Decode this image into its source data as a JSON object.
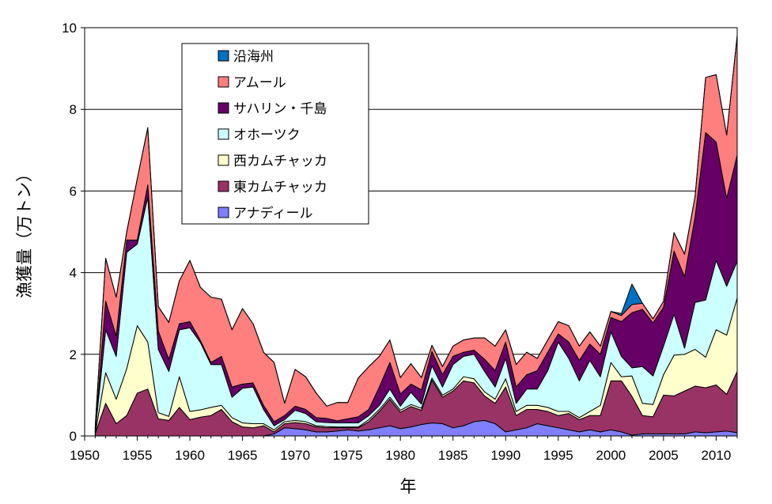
{
  "chart_data": {
    "type": "area",
    "stacked": true,
    "title": "",
    "xlabel": "年",
    "ylabel": "漁獲量（万トン）",
    "xlim": [
      1950,
      2012
    ],
    "ylim": [
      0,
      10
    ],
    "xticks": [
      1950,
      1955,
      1960,
      1965,
      1970,
      1975,
      1980,
      1985,
      1990,
      1995,
      2000,
      2005,
      2010
    ],
    "yticks": [
      0,
      2,
      4,
      6,
      8,
      10
    ],
    "grid": "horizontal",
    "legend_position": "top-left inside",
    "x": [
      1951,
      1952,
      1953,
      1954,
      1955,
      1956,
      1957,
      1958,
      1959,
      1960,
      1961,
      1962,
      1963,
      1964,
      1965,
      1966,
      1967,
      1968,
      1969,
      1970,
      1971,
      1972,
      1973,
      1974,
      1975,
      1976,
      1977,
      1978,
      1979,
      1980,
      1981,
      1982,
      1983,
      1984,
      1985,
      1986,
      1987,
      1988,
      1989,
      1990,
      1991,
      1992,
      1993,
      1994,
      1995,
      1996,
      1997,
      1998,
      1999,
      2000,
      2001,
      2002,
      2003,
      2004,
      2005,
      2006,
      2007,
      2008,
      2009,
      2010,
      2011,
      2012
    ],
    "series": [
      {
        "name": "アナディール",
        "color": "#7f7fff",
        "values": [
          0,
          0,
          0,
          0,
          0,
          0,
          0,
          0,
          0,
          0,
          0,
          0,
          0,
          0,
          0,
          0,
          0,
          0.05,
          0.2,
          0.18,
          0.15,
          0.1,
          0.1,
          0.12,
          0.15,
          0.12,
          0.15,
          0.2,
          0.25,
          0.18,
          0.22,
          0.28,
          0.32,
          0.3,
          0.2,
          0.25,
          0.35,
          0.38,
          0.3,
          0.1,
          0.15,
          0.2,
          0.3,
          0.25,
          0.2,
          0.15,
          0.1,
          0.15,
          0.1,
          0.15,
          0.1,
          0.02,
          0.05,
          0.05,
          0.05,
          0.05,
          0.05,
          0.1,
          0.08,
          0.1,
          0.12,
          0.08
        ]
      },
      {
        "name": "東カムチャッカ",
        "color": "#993366",
        "values": [
          0.05,
          0.8,
          0.3,
          0.5,
          1.05,
          1.15,
          0.42,
          0.38,
          0.7,
          0.4,
          0.46,
          0.5,
          0.65,
          0.35,
          0.22,
          0.2,
          0.25,
          0.05,
          0.1,
          0.15,
          0.15,
          0.12,
          0.1,
          0.08,
          0.05,
          0.08,
          0.2,
          0.4,
          0.65,
          0.4,
          0.5,
          0.35,
          1.05,
          0.65,
          0.9,
          1.1,
          0.95,
          0.6,
          0.5,
          1.1,
          0.35,
          0.45,
          0.35,
          0.35,
          0.3,
          0.4,
          0.3,
          0.35,
          0.4,
          1.2,
          1.25,
          0.95,
          0.45,
          0.42,
          0.95,
          0.93,
          1.05,
          1.12,
          1.1,
          1.15,
          0.9,
          1.5
        ]
      },
      {
        "name": "西カムチャッカ",
        "color": "#ffffcc",
        "values": [
          0,
          0.75,
          0.6,
          1.15,
          1.65,
          1.15,
          0.15,
          0.1,
          0.75,
          0.2,
          0.18,
          0.2,
          0.1,
          0.1,
          0.1,
          0.1,
          0.05,
          0.05,
          0.05,
          0.05,
          0.05,
          0.03,
          0.03,
          0.02,
          0.02,
          0.02,
          0.05,
          0.05,
          0.05,
          0.05,
          0.05,
          0.05,
          0.05,
          0.05,
          0.05,
          0.1,
          0.1,
          0.1,
          0.1,
          0.2,
          0.1,
          0.1,
          0.1,
          0.1,
          0.1,
          0.05,
          0.05,
          0.1,
          0.25,
          0.45,
          0.1,
          0.5,
          0.3,
          0.3,
          0.5,
          1.0,
          0.9,
          0.9,
          0.75,
          1.35,
          1.45,
          1.8
        ]
      },
      {
        "name": "オホーツク",
        "color": "#ccffff",
        "values": [
          0.05,
          1.05,
          1.05,
          2.85,
          2.0,
          3.55,
          1.55,
          1.1,
          1.15,
          2.05,
          1.65,
          1.05,
          1.0,
          0.5,
          0.85,
          0.9,
          0.35,
          0.1,
          0.05,
          0.25,
          0.2,
          0.1,
          0.1,
          0.1,
          0.1,
          0.1,
          0.1,
          0.1,
          0.2,
          0.1,
          0.3,
          0.1,
          0.3,
          0.2,
          0.6,
          0.5,
          0.6,
          0.5,
          0.3,
          0.5,
          0.2,
          0.4,
          0.4,
          0.9,
          1.7,
          1.3,
          0.9,
          1.25,
          0.7,
          0.75,
          0.5,
          0.2,
          0.9,
          0.7,
          0.7,
          1.0,
          0.15,
          1.15,
          1.4,
          1.7,
          1.2,
          0.9
        ]
      },
      {
        "name": "サハリン・千島",
        "color": "#660066",
        "values": [
          0,
          0.7,
          0.5,
          0.3,
          0.1,
          0.3,
          0.45,
          0.3,
          0.15,
          0.15,
          0.05,
          0.05,
          0.2,
          0.25,
          0.1,
          0.1,
          0.1,
          0.1,
          0.1,
          0.1,
          0.1,
          0.1,
          0.1,
          0.05,
          0.1,
          0.15,
          0.15,
          0.45,
          0.65,
          0.3,
          0.2,
          0.35,
          0.35,
          0.3,
          0.2,
          0.1,
          0.1,
          0.3,
          0.4,
          0.4,
          0.4,
          0.35,
          0.45,
          0.45,
          0.2,
          0.4,
          0.5,
          0.4,
          0.55,
          0.35,
          0.85,
          1.35,
          1.4,
          1.3,
          0.95,
          1.55,
          1.75,
          2.1,
          4.1,
          2.9,
          2.15,
          2.6
        ]
      },
      {
        "name": "アムール",
        "color": "#ff7f7f",
        "values": [
          0.1,
          1.05,
          0.95,
          0.2,
          1.5,
          1.4,
          0.6,
          0.9,
          1.05,
          1.5,
          1.3,
          1.6,
          1.4,
          1.4,
          1.85,
          1.45,
          1.3,
          1.45,
          0.3,
          0.9,
          0.8,
          0.6,
          0.3,
          0.45,
          0.4,
          0.95,
          1.05,
          0.75,
          0.55,
          0.4,
          0.5,
          0.3,
          0.15,
          0.2,
          0.25,
          0.3,
          0.3,
          0.52,
          0.6,
          0.3,
          0.55,
          0.55,
          0.3,
          0.3,
          0.3,
          0.4,
          0.35,
          0.3,
          0.2,
          0.15,
          0.15,
          0.2,
          0.15,
          0.1,
          0.15,
          0.45,
          0.55,
          0.5,
          1.35,
          1.65,
          1.55,
          2.92
        ]
      },
      {
        "name": "沿海州",
        "color": "#0070c0",
        "values": [
          0,
          0,
          0,
          0,
          0,
          0,
          0,
          0,
          0,
          0,
          0,
          0,
          0,
          0,
          0,
          0,
          0,
          0,
          0,
          0,
          0,
          0,
          0,
          0,
          0,
          0,
          0,
          0,
          0,
          0,
          0,
          0,
          0,
          0,
          0,
          0,
          0,
          0,
          0,
          0,
          0,
          0,
          0,
          0,
          0,
          0,
          0,
          0,
          0,
          0,
          0.05,
          0.5,
          0,
          0,
          0,
          0,
          0,
          0,
          0,
          0,
          0,
          0
        ]
      }
    ]
  }
}
